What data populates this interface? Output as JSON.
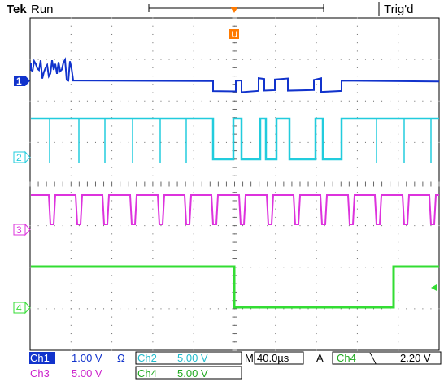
{
  "header": {
    "brand": "Tek",
    "run_state": "Run",
    "trigger_state": "Trig'd"
  },
  "trigger_marker": {
    "label": "U",
    "color": "#ff7a00"
  },
  "channels": [
    {
      "id": "1",
      "color": "#1133cc"
    },
    {
      "id": "2",
      "color": "#22ccdd"
    },
    {
      "id": "3",
      "color": "#dd33dd"
    },
    {
      "id": "4",
      "color": "#33dd33"
    }
  ],
  "readouts": {
    "ch1_label": "Ch1",
    "ch1_scale": "1.00 V",
    "ch1_coupling": "Ω",
    "ch2_label": "Ch2",
    "ch2_scale": "5.00 V",
    "ch3_label": "Ch3",
    "ch3_scale": "5.00 V",
    "ch4_label": "Ch4",
    "ch4_scale": "5.00 V",
    "timebase_prefix": "M",
    "timebase": "40.0µs",
    "trigger_mode": "A",
    "trigger_source": "Ch4",
    "trigger_slope": "╲",
    "trigger_level": "2.20 V"
  }
}
